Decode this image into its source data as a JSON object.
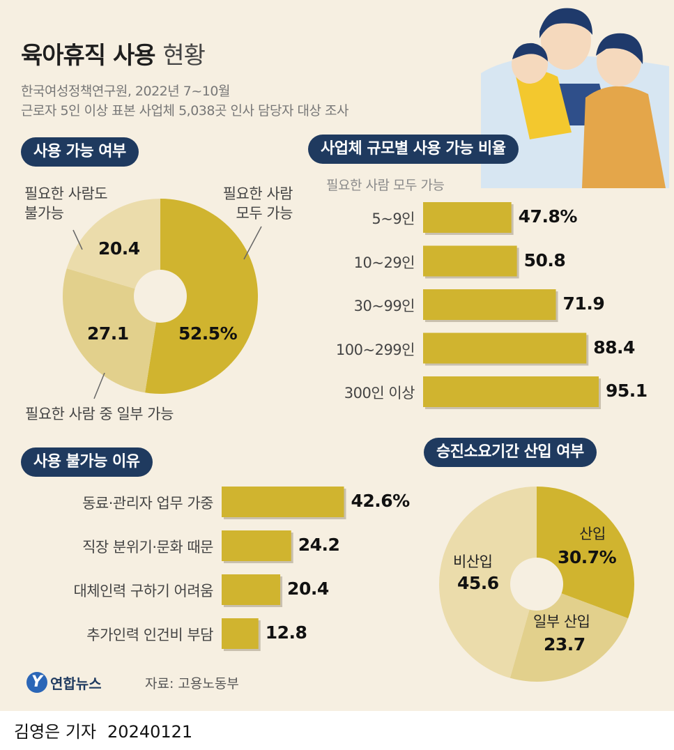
{
  "title": {
    "bold": "육아휴직 사용",
    "light": "현황"
  },
  "subtitle": [
    "한국여성정책연구원, 2022년 7~10월",
    "근로자 5인 이상 표본 사업체 5,038곳 인사 담당자 대상 조사"
  ],
  "colors": {
    "gold": "#d0b42f",
    "mid": "#e2d08c",
    "light": "#ebdcab",
    "navy": "#1f3a5f",
    "bg": "#f6efe1"
  },
  "icons": [
    "family-illustration",
    "yonhap-logo-icon"
  ],
  "chart_data": [
    {
      "type": "pie",
      "title": "사용 가능 여부",
      "slices": [
        {
          "label": "필요한 사람 모두 가능",
          "value": 52.5,
          "display": "52.5%"
        },
        {
          "label": "필요한 사람 중 일부 가능",
          "value": 27.1,
          "display": "27.1"
        },
        {
          "label": "필요한 사람도 불가능",
          "value": 20.4,
          "display": "20.4"
        }
      ],
      "label_lines": {
        "all_possible": [
          "필요한 사람",
          "모두 가능"
        ],
        "none_possible": [
          "필요한 사람도",
          "불가능"
        ]
      }
    },
    {
      "type": "bar",
      "title": "사업체 규모별 사용 가능 비율",
      "note": "필요한 사람 모두 가능",
      "categories": [
        "5~9인",
        "10~29인",
        "30~99인",
        "100~299인",
        "300인 이상"
      ],
      "values": [
        47.8,
        50.8,
        71.9,
        88.4,
        95.1
      ],
      "display": [
        "47.8%",
        "50.8",
        "71.9",
        "88.4",
        "95.1"
      ]
    },
    {
      "type": "bar",
      "title": "사용 불가능 이유",
      "categories": [
        "동료·관리자 업무 가중",
        "직장 분위기·문화 때문",
        "대체인력 구하기 어려움",
        "추가인력 인건비 부담"
      ],
      "values": [
        42.6,
        24.2,
        20.4,
        12.8
      ],
      "display": [
        "42.6%",
        "24.2",
        "20.4",
        "12.8"
      ]
    },
    {
      "type": "pie",
      "title": "승진소요기간 산입 여부",
      "slices": [
        {
          "label": "산입",
          "value": 30.7,
          "display": "30.7%"
        },
        {
          "label": "일부 산입",
          "value": 23.7,
          "display": "23.7"
        },
        {
          "label": "비산입",
          "value": 45.6,
          "display": "45.6"
        }
      ]
    }
  ],
  "logo": {
    "mark": "Y",
    "text": "연합뉴스"
  },
  "source": "자료: 고용노동부",
  "footer": {
    "reporter": "김영은 기자",
    "date": "20240121"
  }
}
